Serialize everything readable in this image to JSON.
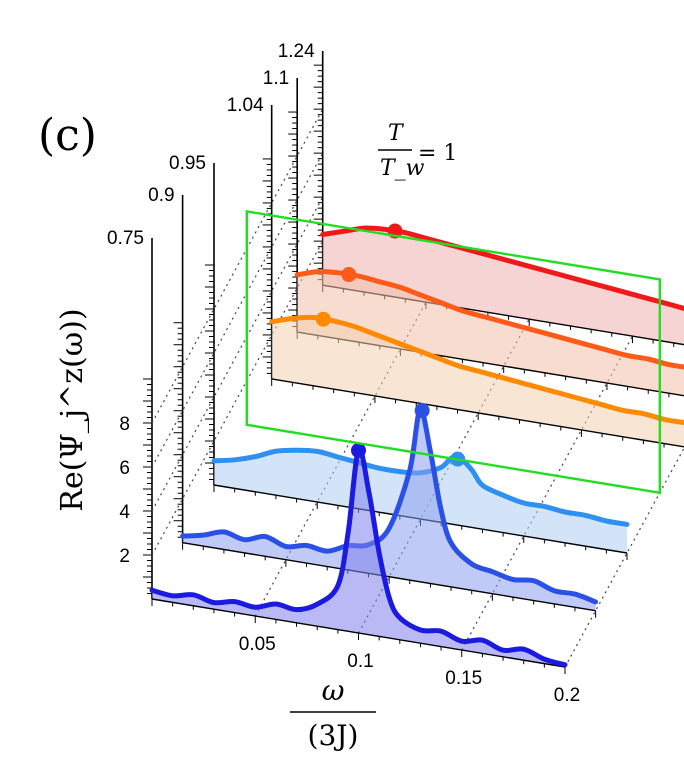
{
  "panel_label": "(c)",
  "chart_data": {
    "type": "line",
    "subtype": "waterfall-3d",
    "xlabel_num": "ω",
    "xlabel_den": "(3J)",
    "ylabel": "Re(Ψ_j^z(ω))",
    "depth_axis_label": "T/T_w",
    "marker_plane_label": "T/T_w = 1",
    "marker_plane_num": "T",
    "marker_plane_den": "T_w",
    "marker_plane_rhs": "= 1",
    "marker_plane_value": 1,
    "x_ticks": [
      "0.05",
      "0.1",
      "0.15",
      "0.2"
    ],
    "x_tick_values": [
      0.05,
      0.1,
      0.15,
      0.2
    ],
    "y_ticks": [
      "2",
      "4",
      "6",
      "8"
    ],
    "y_tick_values": [
      2,
      4,
      6,
      8
    ],
    "depth_ticks": [
      "0.75",
      "0.9",
      "0.95",
      "1.04",
      "1.1",
      "1.24"
    ],
    "depth_tick_values": [
      0.75,
      0.9,
      0.95,
      1.04,
      1.1,
      1.24
    ],
    "xlim": [
      0,
      0.2
    ],
    "ylim": [
      0,
      10
    ],
    "series": [
      {
        "name": "T/T_w = 0.75",
        "depth_index": 0,
        "color": "#1a1ae0",
        "fill": "#8080ee",
        "x": [
          0,
          0.01,
          0.02,
          0.03,
          0.04,
          0.05,
          0.06,
          0.07,
          0.08,
          0.09,
          0.095,
          0.1,
          0.105,
          0.11,
          0.115,
          0.12,
          0.13,
          0.14,
          0.15,
          0.16,
          0.17,
          0.18,
          0.19,
          0.2
        ],
        "y": [
          0.4,
          0.3,
          0.5,
          0.3,
          0.5,
          0.4,
          0.7,
          0.6,
          1.0,
          2.0,
          4.5,
          8.3,
          6.5,
          3.8,
          1.8,
          1.0,
          0.6,
          0.7,
          0.4,
          0.6,
          0.3,
          0.5,
          0.2,
          0.1
        ],
        "peak_x": 0.1,
        "peak_y": 8.3
      },
      {
        "name": "T/T_w = 0.9",
        "depth_index": 1,
        "color": "#2a50e6",
        "fill": "#8aa0ee",
        "x": [
          0,
          0.01,
          0.02,
          0.03,
          0.04,
          0.05,
          0.06,
          0.07,
          0.08,
          0.09,
          0.1,
          0.11,
          0.115,
          0.12,
          0.125,
          0.13,
          0.14,
          0.15,
          0.16,
          0.17,
          0.18,
          0.19,
          0.2
        ],
        "y": [
          0.3,
          0.5,
          0.8,
          0.6,
          0.9,
          0.6,
          0.8,
          0.7,
          1.1,
          1.3,
          2.2,
          5.0,
          7.8,
          6.0,
          3.5,
          2.0,
          1.2,
          1.0,
          0.8,
          0.9,
          0.6,
          0.6,
          0.4
        ],
        "peak_x": 0.116,
        "peak_y": 7.8
      },
      {
        "name": "T/T_w = 0.95",
        "depth_index": 2,
        "color": "#2e90ef",
        "fill": "#aecdf3",
        "x": [
          0,
          0.01,
          0.02,
          0.03,
          0.04,
          0.05,
          0.06,
          0.07,
          0.08,
          0.09,
          0.1,
          0.11,
          0.115,
          0.12,
          0.125,
          0.13,
          0.14,
          0.15,
          0.16,
          0.17,
          0.18,
          0.19,
          0.2
        ],
        "y": [
          1.1,
          1.3,
          1.6,
          2.0,
          2.2,
          2.3,
          2.2,
          2.1,
          2.0,
          2.0,
          2.1,
          2.5,
          3.0,
          3.0,
          2.6,
          2.0,
          1.7,
          1.5,
          1.5,
          1.4,
          1.4,
          1.3,
          1.3
        ],
        "peak_x": 0.118,
        "peak_y": 3.0
      },
      {
        "name": "T/T_w = 1.04",
        "depth_index": 3,
        "color": "#ff8a00",
        "fill": "#f2cfae",
        "x": [
          0,
          0.01,
          0.02,
          0.03,
          0.04,
          0.05,
          0.06,
          0.07,
          0.08,
          0.09,
          0.1,
          0.11,
          0.12,
          0.13,
          0.14,
          0.15,
          0.16,
          0.17,
          0.18,
          0.19,
          0.2
        ],
        "y": [
          2.6,
          2.9,
          3.1,
          3.1,
          3.0,
          2.8,
          2.6,
          2.4,
          2.2,
          2.0,
          1.9,
          1.8,
          1.7,
          1.6,
          1.5,
          1.4,
          1.3,
          1.2,
          1.2,
          1.1,
          1.1
        ],
        "peak_x": 0.025,
        "peak_y": 3.1
      },
      {
        "name": "T/T_w = 1.1",
        "depth_index": 4,
        "color": "#ff5a18",
        "fill": "#f2bfaa",
        "x": [
          0,
          0.01,
          0.02,
          0.03,
          0.04,
          0.05,
          0.06,
          0.07,
          0.08,
          0.09,
          0.1,
          0.11,
          0.12,
          0.13,
          0.14,
          0.15,
          0.16,
          0.17,
          0.18,
          0.19,
          0.2
        ],
        "y": [
          2.6,
          2.9,
          3.0,
          3.0,
          2.9,
          2.8,
          2.6,
          2.4,
          2.2,
          2.1,
          2.0,
          1.9,
          1.8,
          1.7,
          1.6,
          1.5,
          1.4,
          1.4,
          1.3,
          1.3,
          1.2
        ],
        "peak_x": 0.025,
        "peak_y": 3.0
      },
      {
        "name": "T/T_w = 1.24",
        "depth_index": 5,
        "color": "#f01818",
        "fill": "#f0b0b0",
        "x": [
          0,
          0.01,
          0.02,
          0.03,
          0.04,
          0.05,
          0.06,
          0.07,
          0.08,
          0.09,
          0.1,
          0.11,
          0.12,
          0.13,
          0.14,
          0.15,
          0.16,
          0.17,
          0.18,
          0.19,
          0.2
        ],
        "y": [
          2.3,
          2.6,
          2.9,
          3.0,
          3.0,
          2.9,
          2.8,
          2.7,
          2.6,
          2.5,
          2.4,
          2.3,
          2.2,
          2.1,
          2.0,
          1.9,
          1.8,
          1.7,
          1.6,
          1.6,
          1.5
        ],
        "peak_x": 0.035,
        "peak_y": 3.0
      }
    ]
  }
}
